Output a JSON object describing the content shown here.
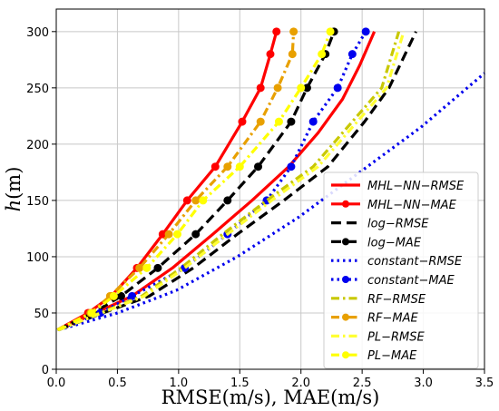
{
  "chart_data": {
    "type": "line",
    "xlabel": "RMSE(m/s), MAE(m/s)",
    "ylabel": "h(m)",
    "xlim": [
      0,
      3.5
    ],
    "ylim": [
      0,
      320
    ],
    "xticks": [
      "0.0",
      "0.5",
      "1.0",
      "1.5",
      "2.0",
      "2.5",
      "3.0",
      "3.5"
    ],
    "yticks": [
      "0",
      "50",
      "100",
      "150",
      "200",
      "250",
      "300"
    ],
    "grid": true,
    "legend_position": "lower-right",
    "series": [
      {
        "name": "MHL−NN−RMSE",
        "color": "#ff0000",
        "dash": "solid",
        "markers": false,
        "x": [
          0.02,
          0.32,
          0.62,
          0.95,
          1.28,
          1.6,
          1.9,
          2.14,
          2.34,
          2.48,
          2.6
        ],
        "y": [
          35,
          50,
          65,
          90,
          120,
          150,
          180,
          210,
          240,
          270,
          300
        ]
      },
      {
        "name": "MHL−NN−MAE",
        "color": "#ff0000",
        "dash": "solid",
        "markers": true,
        "x": [
          0.01,
          0.26,
          0.45,
          0.66,
          0.87,
          1.07,
          1.3,
          1.52,
          1.67,
          1.75,
          1.8
        ],
        "y": [
          35,
          50,
          65,
          90,
          120,
          150,
          180,
          220,
          250,
          280,
          300
        ]
      },
      {
        "name": "log−RMSE",
        "color": "#000000",
        "dash": "long",
        "markers": false,
        "x": [
          0.02,
          0.38,
          0.76,
          1.12,
          1.48,
          1.86,
          2.22,
          2.52,
          2.72,
          2.94
        ],
        "y": [
          35,
          50,
          65,
          90,
          120,
          150,
          180,
          220,
          250,
          300
        ]
      },
      {
        "name": "log−MAE",
        "color": "#000000",
        "dash": "long",
        "markers": true,
        "x": [
          0.01,
          0.3,
          0.53,
          0.83,
          1.14,
          1.4,
          1.65,
          1.92,
          2.05,
          2.2,
          2.27
        ],
        "y": [
          35,
          50,
          65,
          90,
          120,
          150,
          180,
          220,
          250,
          280,
          300
        ]
      },
      {
        "name": "constant−RMSE",
        "color": "#0000ee",
        "dash": "dot",
        "markers": false,
        "x": [
          0.02,
          0.5,
          0.98,
          1.48,
          1.98,
          2.48,
          2.98,
          3.5
        ],
        "y": [
          35,
          50,
          70,
          100,
          135,
          175,
          215,
          263
        ]
      },
      {
        "name": "constant−MAE",
        "color": "#0000ee",
        "dash": "dot",
        "markers": true,
        "x": [
          0.01,
          0.36,
          0.62,
          1.05,
          1.4,
          1.72,
          1.92,
          2.1,
          2.3,
          2.42,
          2.53
        ],
        "y": [
          35,
          50,
          65,
          90,
          120,
          150,
          180,
          220,
          250,
          280,
          300
        ]
      },
      {
        "name": "RF−RMSE",
        "color": "#c8c800",
        "dash": "dashdot",
        "markers": false,
        "x": [
          0.02,
          0.36,
          0.7,
          1.02,
          1.36,
          1.72,
          2.1,
          2.42,
          2.66,
          2.8
        ],
        "y": [
          35,
          50,
          65,
          90,
          120,
          150,
          180,
          220,
          250,
          300
        ]
      },
      {
        "name": "RF−MAE",
        "color": "#e8a000",
        "dash": "dashdot",
        "markers": true,
        "x": [
          0.01,
          0.28,
          0.44,
          0.68,
          0.92,
          1.14,
          1.4,
          1.67,
          1.81,
          1.93,
          1.94
        ],
        "y": [
          35,
          50,
          65,
          90,
          120,
          150,
          180,
          220,
          250,
          280,
          300
        ]
      },
      {
        "name": "PL−RMSE",
        "color": "#ffff33",
        "dash": "dashdot",
        "markers": false,
        "x": [
          0.02,
          0.37,
          0.72,
          1.05,
          1.4,
          1.76,
          2.14,
          2.46,
          2.7,
          2.84
        ],
        "y": [
          35,
          50,
          65,
          90,
          120,
          150,
          180,
          220,
          250,
          300
        ]
      },
      {
        "name": "PL−MAE",
        "color": "#ffff00",
        "dash": "dashdot",
        "markers": true,
        "x": [
          0.01,
          0.29,
          0.47,
          0.74,
          0.99,
          1.2,
          1.5,
          1.82,
          2.0,
          2.17,
          2.24
        ],
        "y": [
          35,
          50,
          65,
          90,
          120,
          150,
          180,
          220,
          250,
          280,
          300
        ]
      }
    ]
  }
}
